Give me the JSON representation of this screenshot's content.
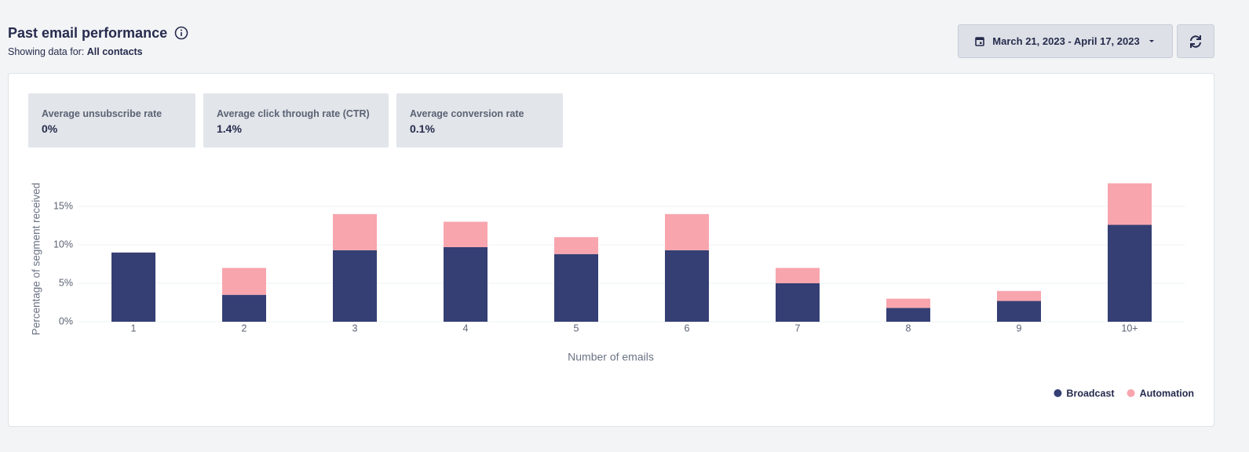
{
  "header": {
    "title": "Past email performance",
    "subtitle_prefix": "Showing data for:",
    "subtitle_value": "All contacts",
    "date_range": "March 21, 2023 - April 17, 2023"
  },
  "stats": [
    {
      "label": "Average unsubscribe rate",
      "value": "0%"
    },
    {
      "label": "Average click through rate (CTR)",
      "value": "1.4%"
    },
    {
      "label": "Average conversion rate",
      "value": "0.1%"
    }
  ],
  "chart_data": {
    "type": "stacked_bar",
    "x_label": "Number of emails",
    "y_label": "Percentage of segment received",
    "categories": [
      "1",
      "2",
      "3",
      "4",
      "5",
      "6",
      "7",
      "8",
      "9",
      "10+"
    ],
    "series": [
      {
        "name": "Broadcast",
        "color": "#353f74",
        "values": [
          9.0,
          3.5,
          9.3,
          9.7,
          8.8,
          9.3,
          5.0,
          1.8,
          2.7,
          12.6
        ]
      },
      {
        "name": "Automation",
        "color": "#f8a5ae",
        "values": [
          0,
          3.5,
          4.7,
          3.3,
          2.2,
          4.7,
          2.0,
          1.2,
          1.3,
          5.4
        ]
      }
    ],
    "ylim": [
      0,
      20
    ],
    "yticks": [
      {
        "value": 0,
        "label": "0%"
      },
      {
        "value": 5,
        "label": "5%"
      },
      {
        "value": 10,
        "label": "10%"
      },
      {
        "value": 15,
        "label": "15%"
      }
    ],
    "grid": true,
    "legend": "bottom-right"
  }
}
